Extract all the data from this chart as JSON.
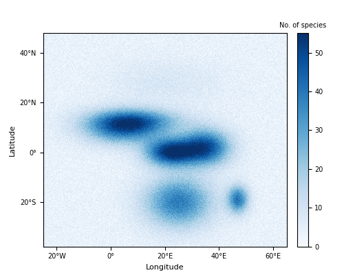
{
  "title": "",
  "xlabel": "Longitude",
  "ylabel": "Latitude",
  "xlim": [
    -25,
    65
  ],
  "ylim": [
    -38,
    48
  ],
  "xticks": [
    -20,
    0,
    20,
    40,
    60
  ],
  "xtick_labels": [
    "20°W",
    "0°",
    "20°E",
    "40°E",
    "60°E"
  ],
  "yticks": [
    -20,
    0,
    20,
    40
  ],
  "ytick_labels": [
    "20°S",
    "0°",
    "20°N",
    "40°N"
  ],
  "colorbar_label": "No. of species",
  "colorbar_ticks": [
    0,
    10,
    20,
    30,
    40,
    50
  ],
  "vmin": 0,
  "vmax": 55,
  "cmap": "Blues",
  "background_color": "#ffffff",
  "land_color": "#ffffff",
  "border_color": "#aaaaaa",
  "ocean_color": "#ffffff",
  "figsize": [
    5.0,
    4.03
  ],
  "dpi": 100
}
